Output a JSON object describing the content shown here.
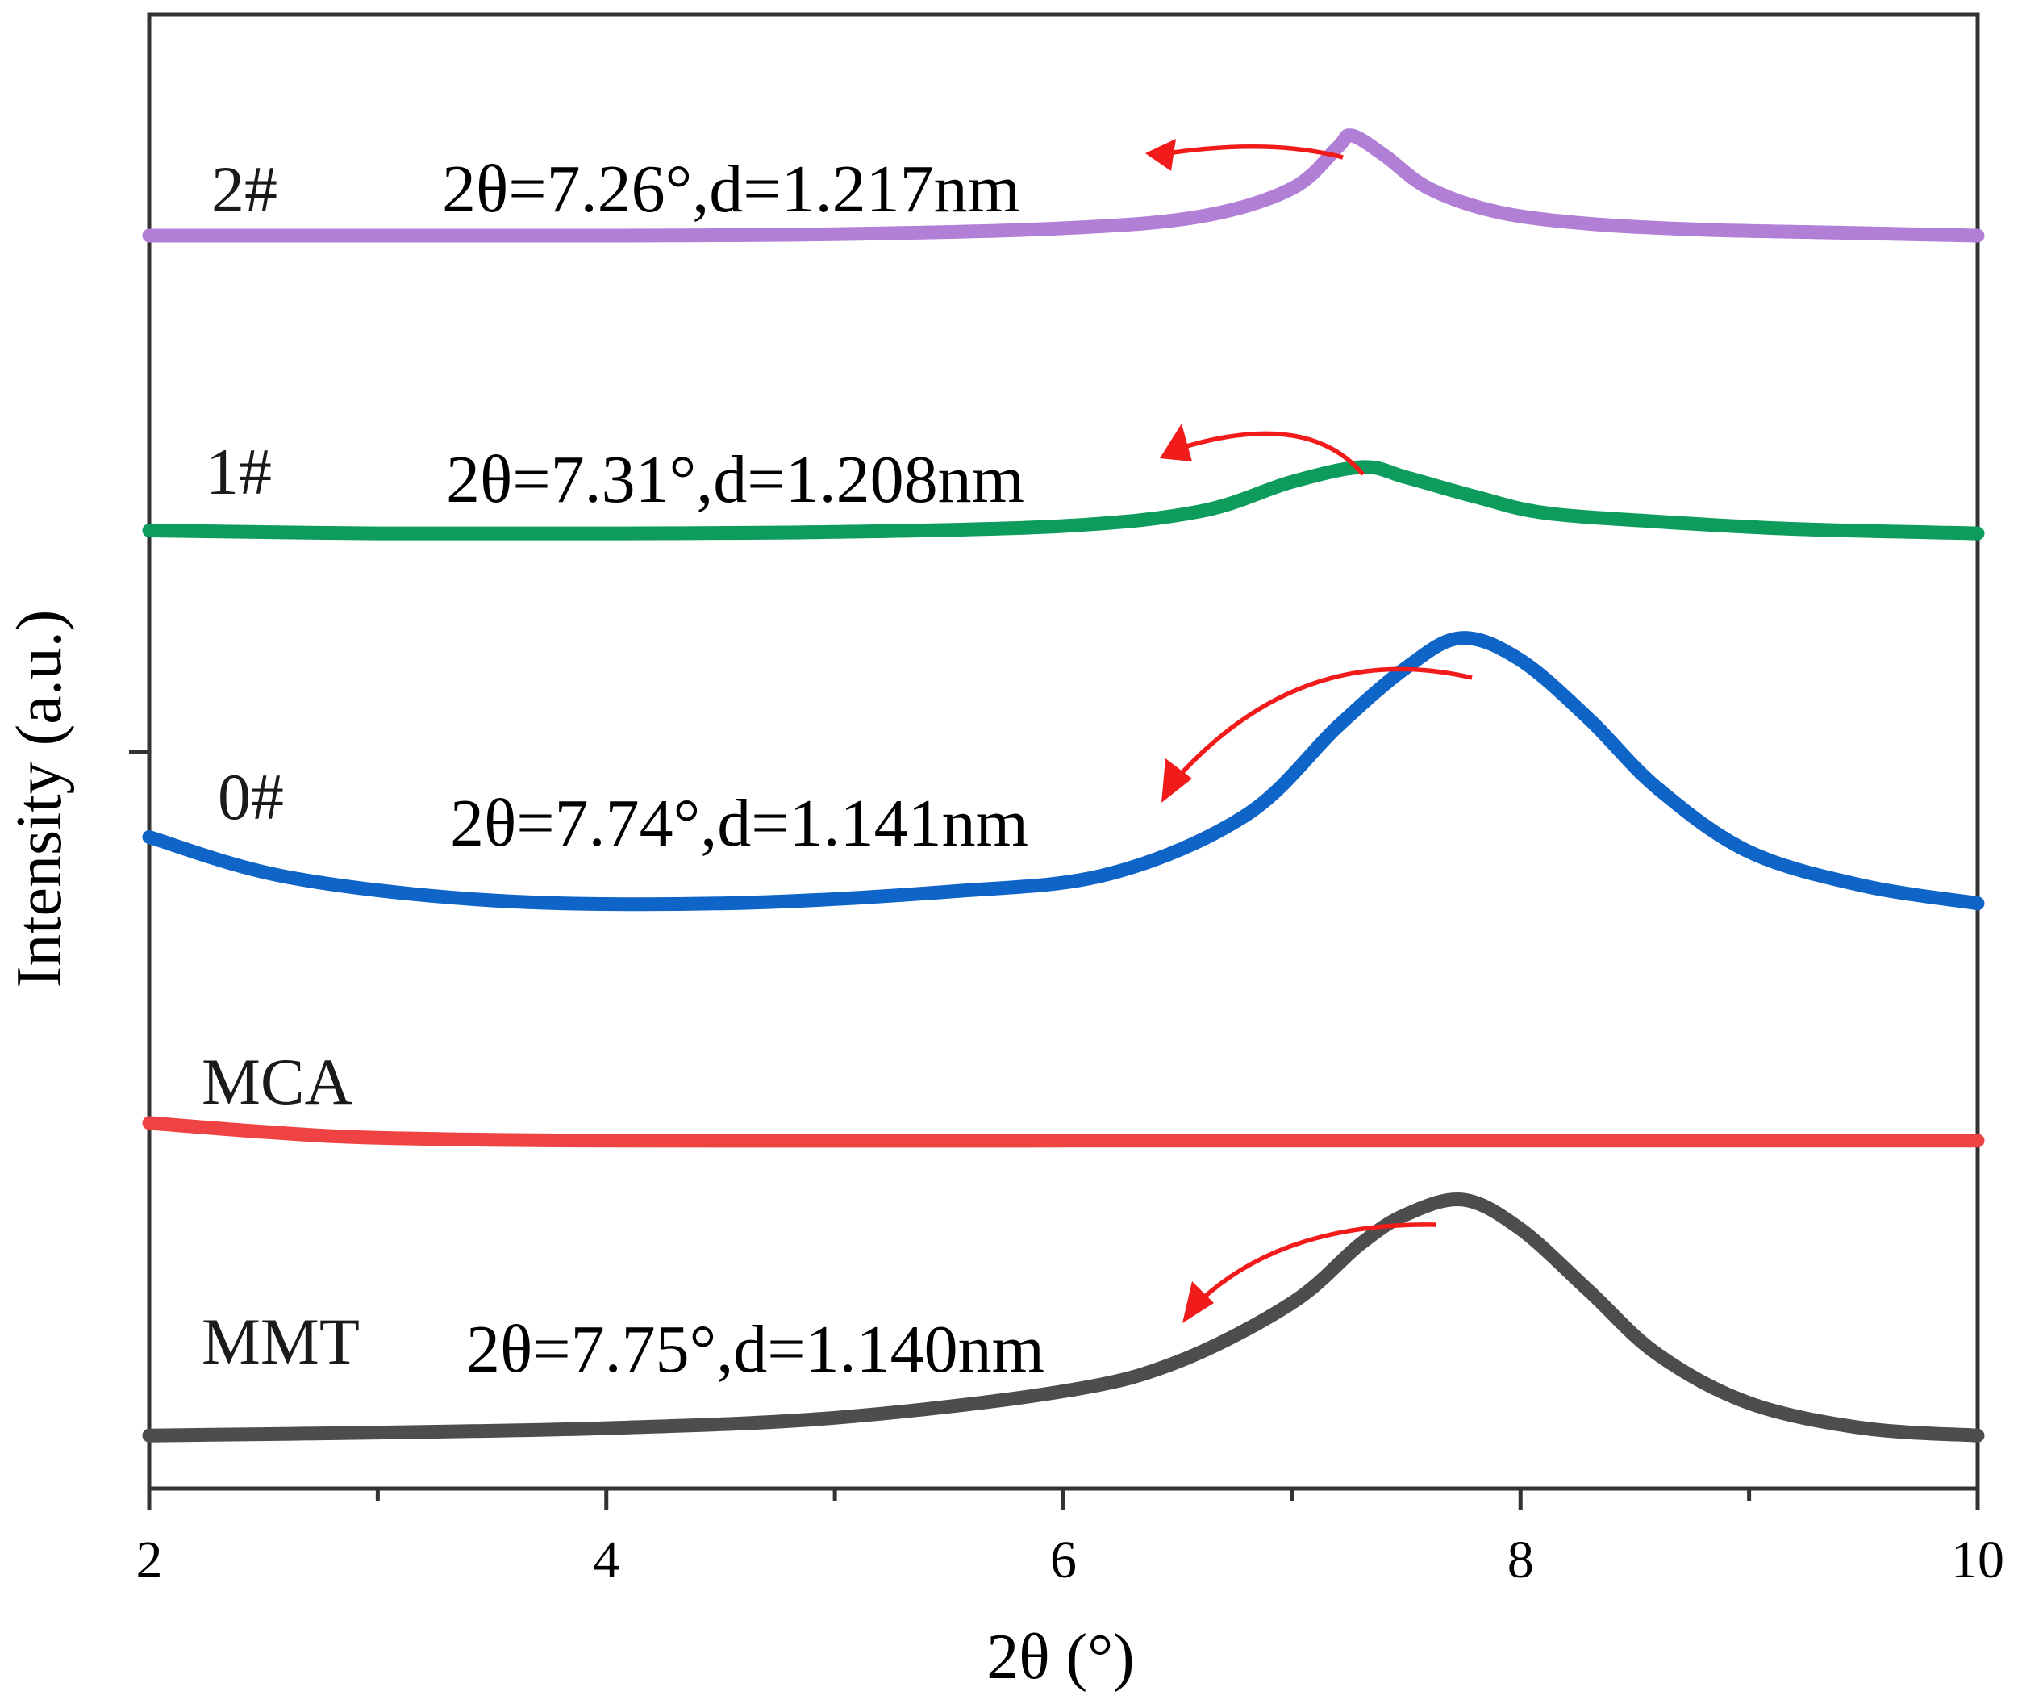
{
  "chart_data": {
    "type": "line",
    "title": "",
    "xlabel": "2θ (°)",
    "ylabel": "Intensity (a.u.)",
    "xlim": [
      2,
      10
    ],
    "x_ticks": [
      "2",
      "4",
      "6",
      "8",
      "10"
    ],
    "ylim": [
      0,
      10
    ],
    "grid": false,
    "legend": "none",
    "series": [
      {
        "name": "2#",
        "color": "#b27fd6",
        "offset": 8.5,
        "points": [
          [
            2.0,
            0.0
          ],
          [
            3.0,
            0.0
          ],
          [
            4.0,
            0.0
          ],
          [
            5.0,
            0.01
          ],
          [
            6.0,
            0.05
          ],
          [
            6.6,
            0.13
          ],
          [
            7.0,
            0.32
          ],
          [
            7.2,
            0.6
          ],
          [
            7.26,
            0.68
          ],
          [
            7.4,
            0.55
          ],
          [
            7.6,
            0.32
          ],
          [
            7.9,
            0.16
          ],
          [
            8.3,
            0.08
          ],
          [
            8.8,
            0.04
          ],
          [
            9.4,
            0.02
          ],
          [
            10.0,
            0.0
          ]
        ],
        "annotation": "2θ=7.26°,d=1.217nm"
      },
      {
        "name": "1#",
        "color": "#0d9c5c",
        "offset": 6.48,
        "points": [
          [
            2.0,
            0.02
          ],
          [
            3.0,
            0.0
          ],
          [
            4.0,
            0.0
          ],
          [
            5.0,
            0.01
          ],
          [
            6.0,
            0.05
          ],
          [
            6.6,
            0.15
          ],
          [
            7.0,
            0.35
          ],
          [
            7.31,
            0.45
          ],
          [
            7.5,
            0.38
          ],
          [
            7.8,
            0.25
          ],
          [
            8.1,
            0.14
          ],
          [
            8.6,
            0.08
          ],
          [
            9.2,
            0.03
          ],
          [
            10.0,
            0.0
          ]
        ],
        "annotation": "2θ=7.31°,d=1.208nm"
      },
      {
        "name": "0#",
        "color": "#0f64c8",
        "offset": 3.97,
        "points": [
          [
            2.0,
            0.45
          ],
          [
            2.6,
            0.18
          ],
          [
            3.5,
            0.02
          ],
          [
            4.5,
            0.0
          ],
          [
            5.5,
            0.08
          ],
          [
            6.2,
            0.2
          ],
          [
            6.8,
            0.6
          ],
          [
            7.2,
            1.2
          ],
          [
            7.5,
            1.6
          ],
          [
            7.74,
            1.8
          ],
          [
            8.0,
            1.65
          ],
          [
            8.3,
            1.25
          ],
          [
            8.6,
            0.78
          ],
          [
            9.0,
            0.35
          ],
          [
            9.5,
            0.12
          ],
          [
            10.0,
            0.0
          ]
        ],
        "annotation": "2θ=7.74°,d=1.141nm"
      },
      {
        "name": "MCA",
        "color": "#ef4343",
        "offset": 2.36,
        "points": [
          [
            2.0,
            0.12
          ],
          [
            2.5,
            0.06
          ],
          [
            3.0,
            0.02
          ],
          [
            4.0,
            0.0
          ],
          [
            6.0,
            0.0
          ],
          [
            8.0,
            0.0
          ],
          [
            10.0,
            0.0
          ]
        ],
        "annotation": ""
      },
      {
        "name": "MMT",
        "color": "#4d4d4d",
        "offset": 0.36,
        "points": [
          [
            2.0,
            0.0
          ],
          [
            3.0,
            0.02
          ],
          [
            4.0,
            0.05
          ],
          [
            5.0,
            0.12
          ],
          [
            6.0,
            0.3
          ],
          [
            6.5,
            0.5
          ],
          [
            7.0,
            0.9
          ],
          [
            7.3,
            1.3
          ],
          [
            7.5,
            1.5
          ],
          [
            7.75,
            1.6
          ],
          [
            8.0,
            1.4
          ],
          [
            8.3,
            0.98
          ],
          [
            8.6,
            0.55
          ],
          [
            9.0,
            0.22
          ],
          [
            9.5,
            0.05
          ],
          [
            10.0,
            0.0
          ]
        ],
        "annotation": "2θ=7.75°,d=1.140nm"
      }
    ]
  }
}
